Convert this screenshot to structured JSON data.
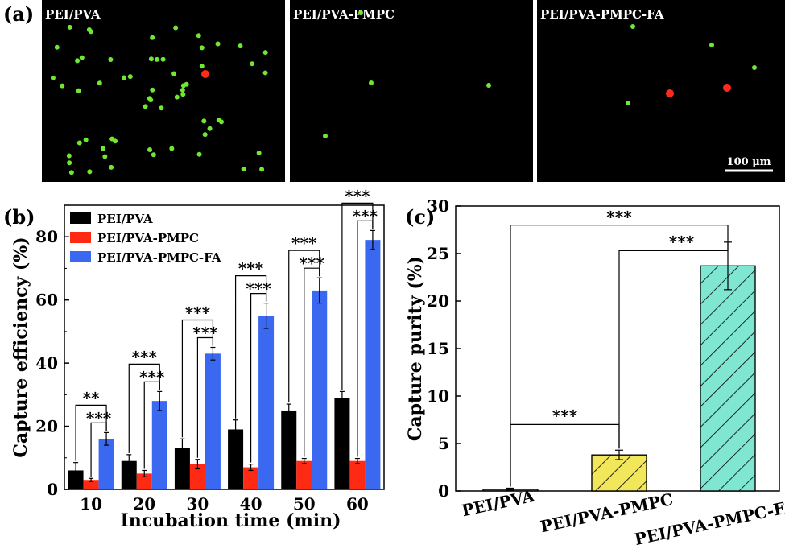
{
  "panels": {
    "a": {
      "label": "(a)",
      "images": [
        {
          "title": "PEI/PVA",
          "green_cells": 60,
          "red_cells": 1
        },
        {
          "title": "PEI/PVA-PMPC",
          "green_cells": 4,
          "red_cells": 0
        },
        {
          "title": "PEI/PVA-PMPC-FA",
          "green_cells": 4,
          "red_cells": 2
        }
      ],
      "scale_bar": "100 μm",
      "colors": {
        "background": "#000000",
        "green": "#6fe832",
        "red": "#ff2a1a"
      }
    },
    "b": {
      "label": "(b)"
    },
    "c": {
      "label": "(c)"
    }
  },
  "chart_data": [
    {
      "type": "bar",
      "title": "",
      "xlabel": "Incubation time (min)",
      "ylabel": "Capture efficiency (%)",
      "categories": [
        "10",
        "20",
        "30",
        "40",
        "50",
        "60"
      ],
      "ylim": [
        0,
        90
      ],
      "yticks": [
        0,
        20,
        40,
        60,
        80
      ],
      "legend_position": "top-left",
      "series": [
        {
          "name": "PEI/PVA",
          "color": "#000000",
          "values": [
            6,
            9,
            13,
            19,
            25,
            29
          ],
          "errors": [
            2.5,
            2,
            3,
            3,
            2,
            2
          ]
        },
        {
          "name": "PEI/PVA-PMPC",
          "color": "#ff2a14",
          "values": [
            3,
            5,
            8,
            7,
            9,
            9
          ],
          "errors": [
            0.5,
            1,
            1.5,
            1,
            0.8,
            0.8
          ]
        },
        {
          "name": "PEI/PVA-PMPC-FA",
          "color": "#3a68f0",
          "values": [
            16,
            28,
            43,
            55,
            63,
            79
          ],
          "errors": [
            2,
            3,
            2,
            4,
            4,
            3
          ]
        }
      ],
      "significance": [
        {
          "category": "10",
          "upper": "**",
          "lower": "***"
        },
        {
          "category": "20",
          "upper": "***",
          "lower": "***"
        },
        {
          "category": "30",
          "upper": "***",
          "lower": "***"
        },
        {
          "category": "40",
          "upper": "***",
          "lower": "***"
        },
        {
          "category": "50",
          "upper": "***",
          "lower": "***"
        },
        {
          "category": "60",
          "upper": "***",
          "lower": "***"
        }
      ]
    },
    {
      "type": "bar",
      "title": "",
      "xlabel": "",
      "ylabel": "Capture purity (%)",
      "categories": [
        "PEI/PVA",
        "PEI/PVA-PMPC",
        "PEI/PVA-PMPC-FA"
      ],
      "values": [
        0.2,
        3.8,
        23.7
      ],
      "errors": [
        0.1,
        0.5,
        2.5
      ],
      "colors": [
        "#4a4a4a",
        "#f2e65a",
        "#7fe6d2"
      ],
      "hatch": "diagonal",
      "ylim": [
        0,
        30
      ],
      "yticks": [
        0,
        5,
        10,
        15,
        20,
        25,
        30
      ],
      "significance": [
        {
          "from": "PEI/PVA",
          "to": "PEI/PVA-PMPC",
          "text": "***"
        },
        {
          "from": "PEI/PVA",
          "to": "PEI/PVA-PMPC-FA",
          "text": "***"
        },
        {
          "from": "PEI/PVA-PMPC",
          "to": "PEI/PVA-PMPC-FA",
          "text": "***"
        }
      ]
    }
  ]
}
